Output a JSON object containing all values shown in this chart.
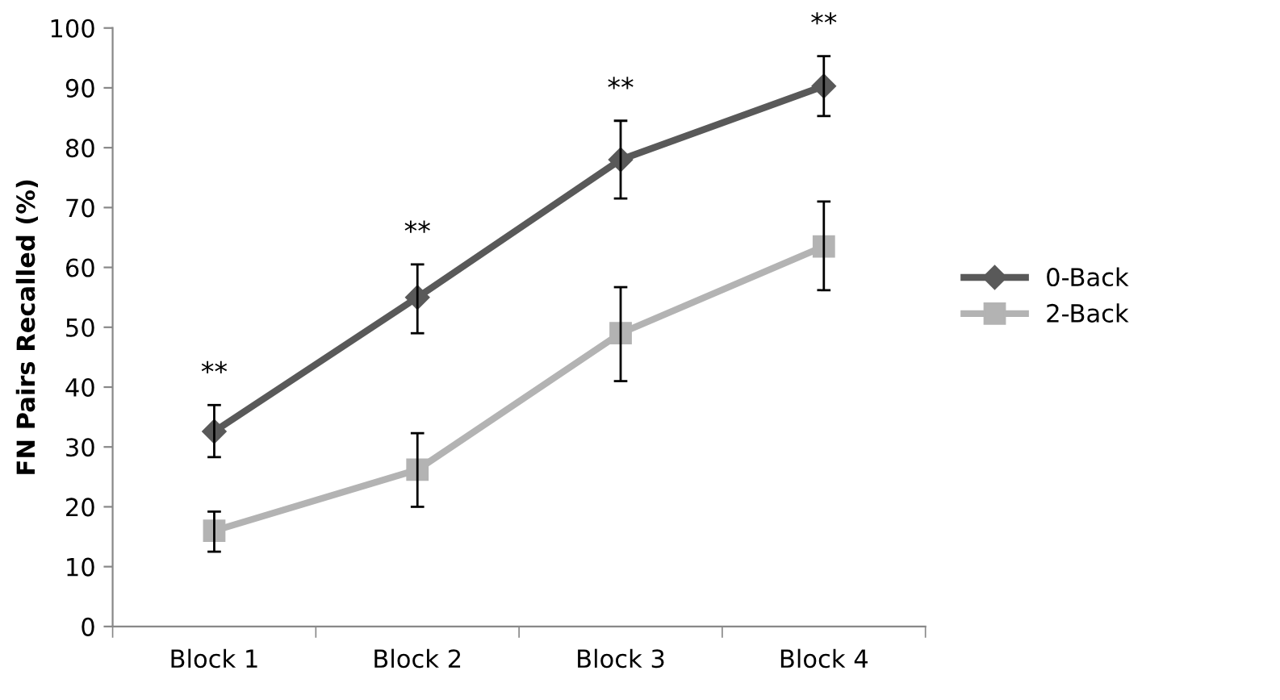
{
  "chart_data": {
    "type": "line",
    "ylabel": "FN Pairs Recalled (%)",
    "categories": [
      "Block 1",
      "Block 2",
      "Block 3",
      "Block 4"
    ],
    "series": [
      {
        "name": "0-Back",
        "color": "#595959",
        "marker": "diamond",
        "values": [
          32.6,
          55,
          78,
          90.3
        ],
        "errors": [
          [
            28.3,
            37
          ],
          [
            49,
            60.5
          ],
          [
            71.5,
            84.5
          ],
          [
            85.3,
            95.3
          ]
        ]
      },
      {
        "name": "2-Back",
        "color": "#b3b3b3",
        "marker": "square",
        "values": [
          16,
          26.2,
          49,
          63.5
        ],
        "errors": [
          [
            12.5,
            19.2
          ],
          [
            20,
            32.3
          ],
          [
            41,
            56.7
          ],
          [
            56.2,
            71
          ]
        ]
      }
    ],
    "annotations": [
      "**",
      "**",
      "**",
      "**"
    ],
    "ylim": [
      0,
      100
    ],
    "yticks": [
      0,
      10,
      20,
      30,
      40,
      50,
      60,
      70,
      80,
      90,
      100
    ],
    "grid": false,
    "legend": "right"
  }
}
